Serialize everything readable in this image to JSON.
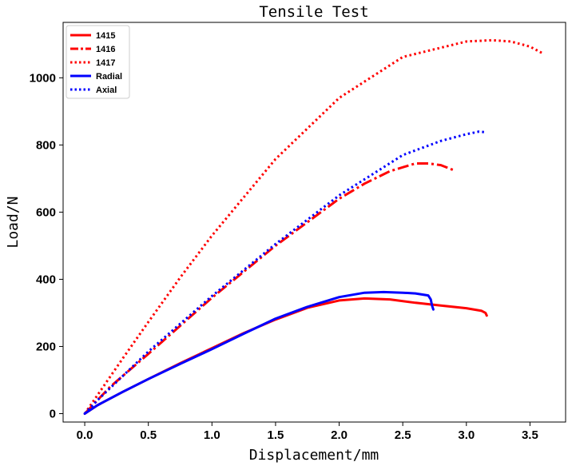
{
  "chart_data": {
    "type": "line",
    "title": "Tensile Test",
    "xlabel": "Displacement/mm",
    "ylabel": "Load/N",
    "xlim": [
      -0.17,
      3.78
    ],
    "ylim": [
      -25,
      1165
    ],
    "xticks": [
      0.0,
      0.5,
      1.0,
      1.5,
      2.0,
      2.5,
      3.0,
      3.5
    ],
    "xtick_labels": [
      "0.0",
      "0.5",
      "1.0",
      "1.5",
      "2.0",
      "2.5",
      "3.0",
      "3.5"
    ],
    "yticks": [
      0,
      200,
      400,
      600,
      800,
      1000
    ],
    "ytick_labels": [
      "0",
      "200",
      "400",
      "600",
      "800",
      "1000"
    ],
    "grid": false,
    "legend_position": "top-left",
    "series": [
      {
        "name": "1415",
        "color": "#ff0000",
        "style": "solid",
        "x": [
          0.0,
          0.1,
          0.3,
          0.5,
          0.75,
          1.0,
          1.25,
          1.5,
          1.75,
          2.0,
          2.2,
          2.4,
          2.6,
          2.8,
          3.0,
          3.12,
          3.15,
          3.16
        ],
        "y": [
          0,
          25,
          65,
          103,
          150,
          195,
          240,
          280,
          315,
          337,
          343,
          340,
          330,
          322,
          314,
          306,
          300,
          292
        ]
      },
      {
        "name": "1416",
        "color": "#ff0000",
        "style": "dashdot",
        "x": [
          0.0,
          0.2,
          0.5,
          1.0,
          1.5,
          2.0,
          2.2,
          2.4,
          2.6,
          2.7,
          2.8,
          2.9
        ],
        "y": [
          0,
          80,
          178,
          345,
          500,
          640,
          685,
          722,
          745,
          745,
          740,
          725
        ]
      },
      {
        "name": "1417",
        "color": "#ff0000",
        "style": "dotted",
        "x": [
          0.0,
          0.1,
          0.3,
          0.5,
          0.75,
          1.0,
          1.5,
          2.0,
          2.5,
          3.0,
          3.2,
          3.35,
          3.5,
          3.6
        ],
        "y": [
          0,
          55,
          165,
          273,
          405,
          530,
          758,
          940,
          1062,
          1108,
          1112,
          1108,
          1093,
          1073
        ]
      },
      {
        "name": "Radial",
        "color": "#0000ff",
        "style": "solid",
        "x": [
          0.0,
          0.1,
          0.3,
          0.5,
          0.75,
          1.0,
          1.25,
          1.5,
          1.75,
          2.0,
          2.2,
          2.35,
          2.5,
          2.6,
          2.7,
          2.72,
          2.73,
          2.74
        ],
        "y": [
          0,
          25,
          65,
          103,
          148,
          192,
          238,
          283,
          318,
          347,
          360,
          362,
          360,
          358,
          352,
          340,
          322,
          310
        ]
      },
      {
        "name": "Axial",
        "color": "#0000ff",
        "style": "dotted",
        "x": [
          0.0,
          0.1,
          0.5,
          1.0,
          1.5,
          2.0,
          2.5,
          2.8,
          3.0,
          3.1,
          3.15
        ],
        "y": [
          0,
          40,
          185,
          350,
          505,
          650,
          770,
          812,
          832,
          840,
          838
        ]
      }
    ]
  }
}
